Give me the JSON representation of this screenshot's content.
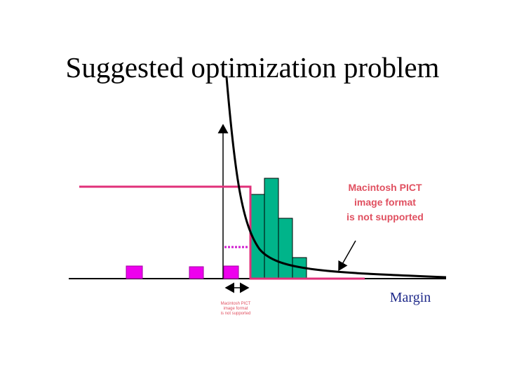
{
  "title": "Suggested optimization problem",
  "pict_notice": {
    "lines": [
      "Macintosh PICT",
      "image format",
      "is not supported"
    ]
  },
  "pict_notice_small": {
    "lines": [
      "Macintosh PICT",
      "image format",
      "is not supported"
    ]
  },
  "margin_label": "Margin"
}
